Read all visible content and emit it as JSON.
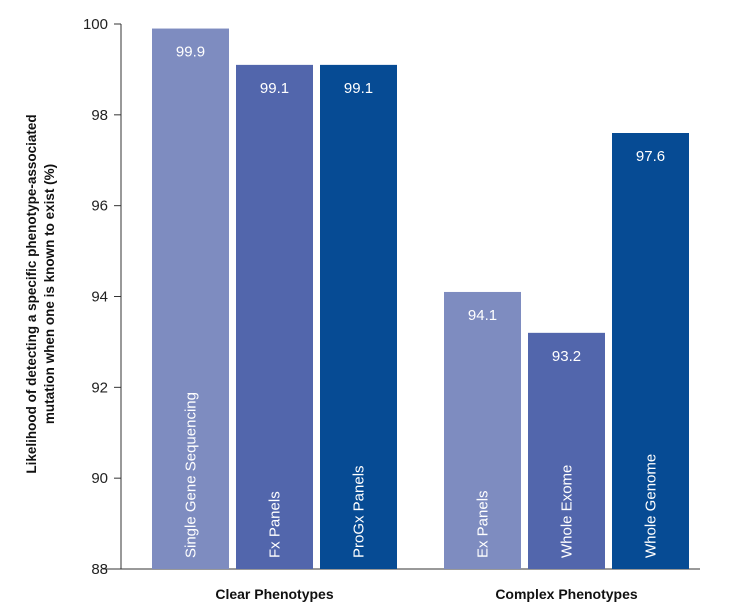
{
  "chart_data": {
    "type": "bar",
    "ylabel_lines": [
      "Likelihood of detecting a specific phenotype-associated",
      "mutation when one is known to exist (%)"
    ],
    "ylim": [
      88,
      100
    ],
    "yticks": [
      88,
      90,
      92,
      94,
      96,
      98,
      100
    ],
    "grid": false,
    "groups": [
      {
        "label": "Clear Phenotypes",
        "bars": [
          {
            "label": "Single Gene Sequencing",
            "value": 99.9,
            "value_label": "99.9",
            "color": "#7e8cc0"
          },
          {
            "label": "Fx Panels",
            "value": 99.1,
            "value_label": "99.1",
            "color": "#5266ac"
          },
          {
            "label": "ProGx Panels",
            "value": 99.1,
            "value_label": "99.1",
            "color": "#064b94"
          }
        ]
      },
      {
        "label": "Complex Phenotypes",
        "bars": [
          {
            "label": "Ex Panels",
            "value": 94.1,
            "value_label": "94.1",
            "color": "#7e8cc0"
          },
          {
            "label": "Whole Exome",
            "value": 93.2,
            "value_label": "93.2",
            "color": "#5266ac"
          },
          {
            "label": "Whole Genome",
            "value": 97.6,
            "value_label": "97.6",
            "color": "#064b94"
          }
        ]
      }
    ]
  }
}
